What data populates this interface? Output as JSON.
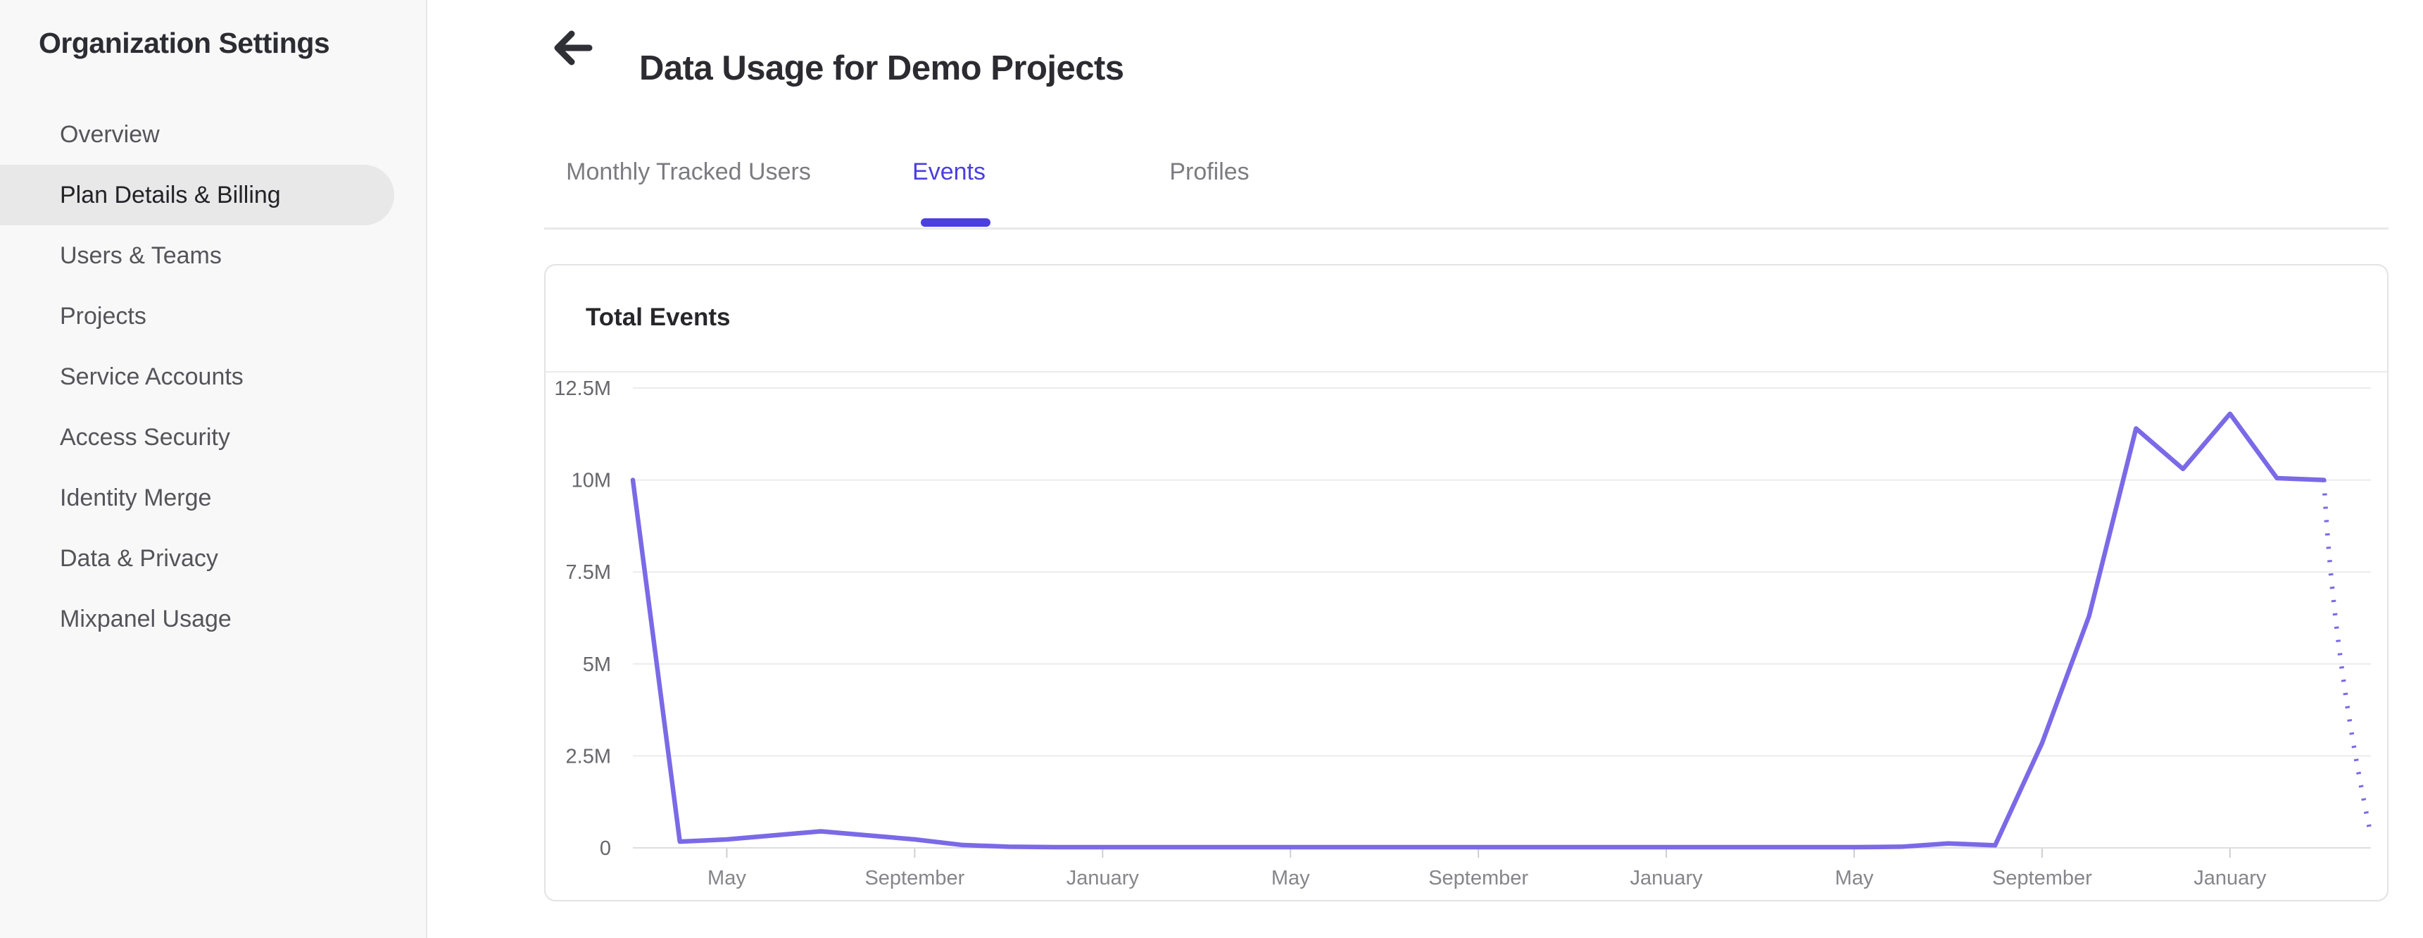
{
  "sidebar": {
    "title": "Organization Settings",
    "items": [
      {
        "label": "Overview",
        "selected": false
      },
      {
        "label": "Plan Details & Billing",
        "selected": true
      },
      {
        "label": "Users & Teams",
        "selected": false
      },
      {
        "label": "Projects",
        "selected": false
      },
      {
        "label": "Service Accounts",
        "selected": false
      },
      {
        "label": "Access Security",
        "selected": false
      },
      {
        "label": "Identity Merge",
        "selected": false
      },
      {
        "label": "Data & Privacy",
        "selected": false
      },
      {
        "label": "Mixpanel Usage",
        "selected": false
      }
    ]
  },
  "header": {
    "back_icon": "arrow-left",
    "title": "Data Usage for Demo Projects"
  },
  "tabs": [
    {
      "label": "Monthly Tracked Users",
      "active": false
    },
    {
      "label": "Events",
      "active": true
    },
    {
      "label": "Profiles",
      "active": false
    }
  ],
  "card": {
    "title": "Total Events"
  },
  "colors": {
    "accent_purple": "#4B3FE0",
    "line_purple": "#7A6AE7",
    "gridline": "#ececee",
    "baseline": "#dedee0",
    "tick": "#cfcfd2",
    "y_label": "#66666c",
    "x_label": "#85858b"
  },
  "chart_data": {
    "type": "line",
    "title": "Total Events",
    "x_months_span": 38,
    "x_tick_indices": [
      2,
      6,
      10,
      14,
      18,
      22,
      26,
      30,
      34
    ],
    "x_tick_labels": [
      "May",
      "September",
      "January",
      "May",
      "September",
      "January",
      "May",
      "September",
      "January"
    ],
    "y_ticks": [
      {
        "label": "12.5M",
        "value": 12500000
      },
      {
        "label": "10M",
        "value": 10000000
      },
      {
        "label": "7.5M",
        "value": 7500000
      },
      {
        "label": "5M",
        "value": 5000000
      },
      {
        "label": "2.5M",
        "value": 2500000
      },
      {
        "label": "0",
        "value": 0
      }
    ],
    "ylim": [
      0,
      12500000
    ],
    "grid": "horizontal",
    "legend": "none",
    "series": [
      {
        "name": "Total Events",
        "projected_last_point": true,
        "values": [
          10000000,
          170000,
          230000,
          340000,
          450000,
          340000,
          230000,
          80000,
          30000,
          20000,
          20000,
          20000,
          20000,
          20000,
          20000,
          20000,
          20000,
          20000,
          20000,
          20000,
          20000,
          20000,
          20000,
          20000,
          20000,
          20000,
          20000,
          30000,
          120000,
          70000,
          2850000,
          6300000,
          11400000,
          10300000,
          11800000,
          10050000,
          10000000,
          350000
        ]
      }
    ]
  }
}
